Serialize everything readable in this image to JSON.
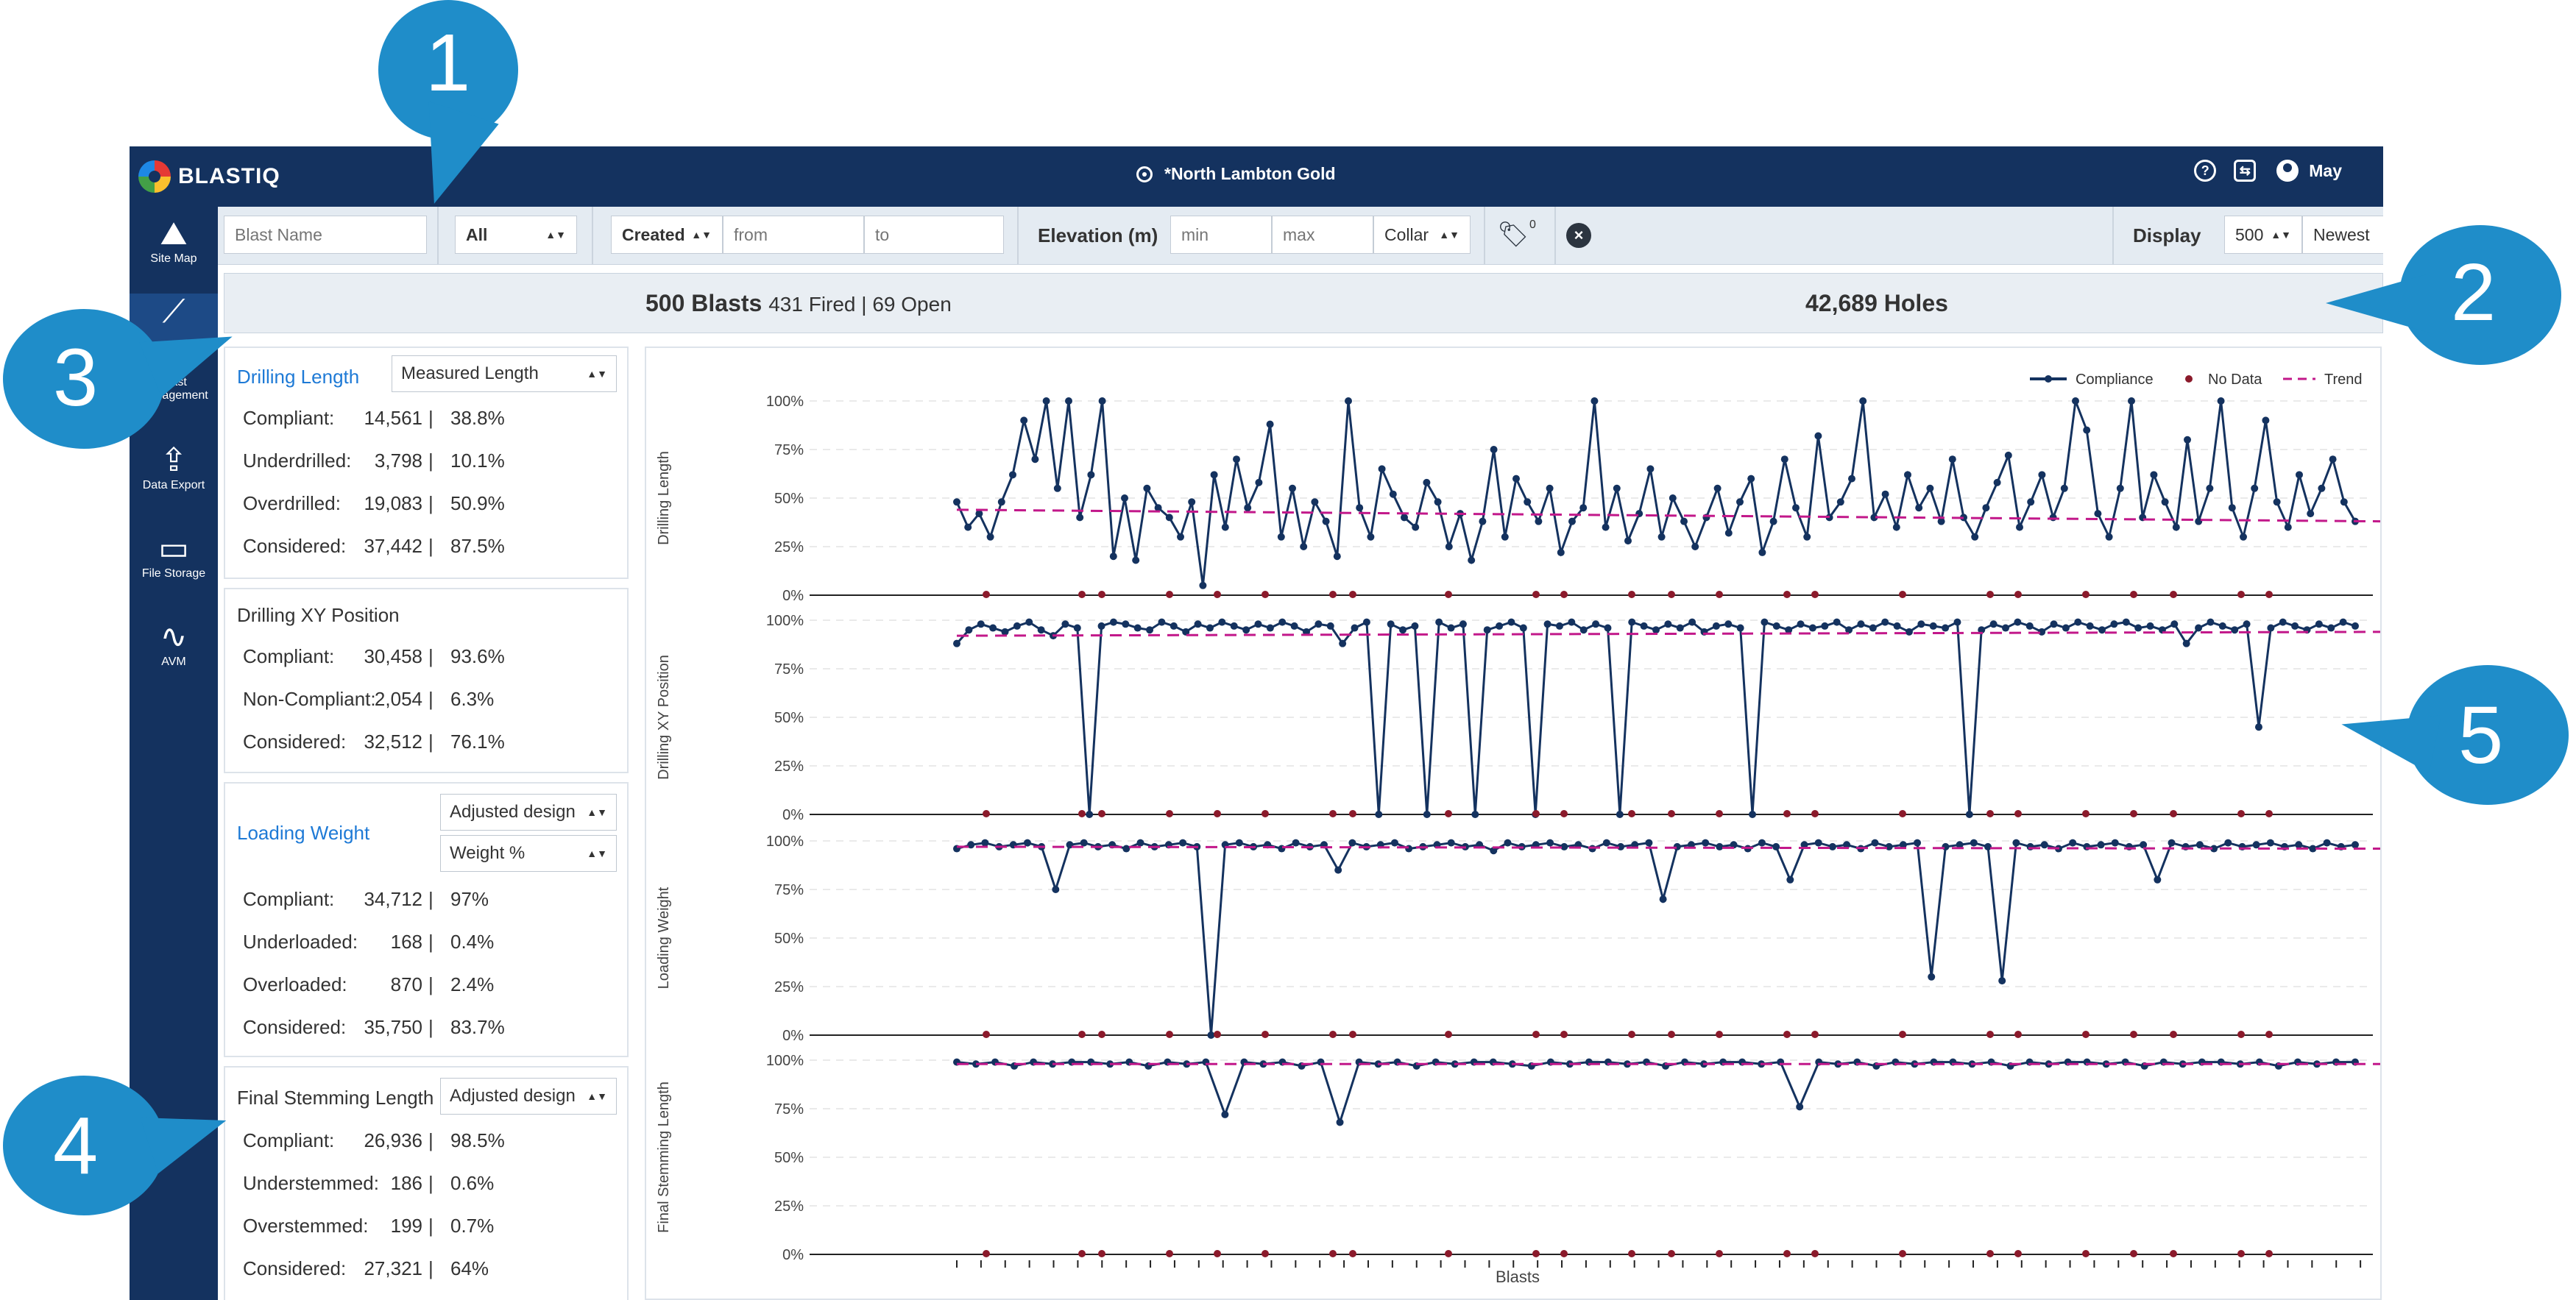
{
  "app": {
    "brand": "BLASTIQ",
    "site_name": "*North Lambton Gold",
    "help_icon": "help-circle-icon",
    "user_name": "May"
  },
  "sidebar": {
    "items": [
      {
        "label": "Site Map",
        "icon": "map-icon"
      },
      {
        "label": "",
        "icon": "analytics-chart-icon"
      },
      {
        "label": "Blast Management",
        "icon": "sliders-icon"
      },
      {
        "label": "Data Export",
        "icon": "upload-icon"
      },
      {
        "label": "File Storage",
        "icon": "folder-icon"
      },
      {
        "label": "AVM",
        "icon": "waveform-icon"
      }
    ]
  },
  "filters": {
    "blast_name_placeholder": "Blast Name",
    "status_value": "All",
    "date_field": "Created",
    "from_placeholder": "from",
    "to_placeholder": "to",
    "elevation_label": "Elevation (m)",
    "min_placeholder": "min",
    "max_placeholder": "max",
    "elevation_ref": "Collar",
    "tag_count": "0",
    "display_label": "Display",
    "display_count": "500",
    "sort_order": "Newest"
  },
  "summary": {
    "blasts_count": "500 Blasts",
    "blasts_detail": "431 Fired | 69 Open",
    "holes": "42,689 Holes"
  },
  "panels": [
    {
      "title": "Drilling Length",
      "dropdowns": [
        "Measured Length"
      ],
      "rows": [
        {
          "label": "Compliant:",
          "count": "14,561",
          "pct": "38.8%"
        },
        {
          "label": "Underdrilled:",
          "count": "3,798",
          "pct": "10.1%"
        },
        {
          "label": "Overdrilled:",
          "count": "19,083",
          "pct": "50.9%"
        },
        {
          "label": "Considered:",
          "count": "37,442",
          "pct": "87.5%"
        }
      ]
    },
    {
      "title": "Drilling XY Position",
      "dropdowns": [],
      "rows": [
        {
          "label": "Compliant:",
          "count": "30,458",
          "pct": "93.6%"
        },
        {
          "label": "Non-Compliant:",
          "count": "2,054",
          "pct": "6.3%"
        },
        {
          "label": "Considered:",
          "count": "32,512",
          "pct": "76.1%"
        }
      ]
    },
    {
      "title": "Loading Weight",
      "dropdowns": [
        "Adjusted design",
        "Weight %"
      ],
      "rows": [
        {
          "label": "Compliant:",
          "count": "34,712",
          "pct": "97%"
        },
        {
          "label": "Underloaded:",
          "count": "168",
          "pct": "0.4%"
        },
        {
          "label": "Overloaded:",
          "count": "870",
          "pct": "2.4%"
        },
        {
          "label": "Considered:",
          "count": "35,750",
          "pct": "83.7%"
        }
      ]
    },
    {
      "title": "Final Stemming Length",
      "dropdowns": [
        "Adjusted design"
      ],
      "rows": [
        {
          "label": "Compliant:",
          "count": "26,936",
          "pct": "98.5%"
        },
        {
          "label": "Understemmed:",
          "count": "186",
          "pct": "0.6%"
        },
        {
          "label": "Overstemmed:",
          "count": "199",
          "pct": "0.7%"
        },
        {
          "label": "Considered:",
          "count": "27,321",
          "pct": "64%"
        }
      ]
    }
  ],
  "callouts": [
    "1",
    "2",
    "3",
    "4",
    "5"
  ],
  "colors": {
    "navy": "#14325f",
    "compliance": "#14325f",
    "nodata": "#8b1a2b",
    "trend": "#c2188a",
    "callout": "#1f8dc9",
    "link": "#1e7ad6"
  },
  "chart_data": [
    {
      "type": "line",
      "ylabel": "Drilling Length",
      "xlabel": "",
      "yticks": [
        "0%",
        "25%",
        "50%",
        "75%",
        "100%"
      ],
      "ylim": [
        0,
        100
      ],
      "legend": [
        "Compliance",
        "No Data",
        "Trend"
      ],
      "legend_position": "top-right",
      "trend": [
        44,
        38
      ],
      "series": [
        {
          "values": [
            48,
            35,
            42,
            30,
            48,
            62,
            90,
            70,
            100,
            55,
            100,
            40,
            62,
            100,
            20,
            50,
            18,
            55,
            45,
            40,
            30,
            48,
            5,
            62,
            35,
            70,
            45,
            58,
            88,
            30,
            55,
            25,
            48,
            38,
            20,
            100,
            45,
            30,
            65,
            52,
            40,
            35,
            58,
            48,
            25,
            42,
            18,
            38,
            75,
            30,
            60,
            48,
            38,
            55,
            22,
            38,
            45,
            100,
            35,
            55,
            28,
            42,
            65,
            30,
            50,
            38,
            25,
            40,
            55,
            32,
            48,
            60,
            22,
            38,
            70,
            45,
            30,
            82,
            40,
            48,
            60,
            100,
            40,
            52,
            35,
            62,
            45,
            55,
            38,
            70,
            40,
            30,
            45,
            58,
            72,
            35,
            48,
            62,
            40,
            55,
            100,
            85,
            42,
            30,
            55,
            100,
            40,
            62,
            48,
            35,
            80,
            38,
            55,
            100,
            45,
            30,
            55,
            90,
            48,
            35,
            62,
            42,
            55,
            70,
            48,
            38
          ]
        }
      ]
    },
    {
      "type": "line",
      "ylabel": "Drilling XY Position",
      "xlabel": "",
      "yticks": [
        "0%",
        "25%",
        "50%",
        "75%",
        "100%"
      ],
      "ylim": [
        0,
        100
      ],
      "trend": [
        92,
        94
      ],
      "series": [
        {
          "values": [
            88,
            95,
            98,
            96,
            94,
            97,
            99,
            95,
            92,
            98,
            96,
            0,
            97,
            99,
            98,
            96,
            95,
            99,
            97,
            94,
            98,
            96,
            99,
            97,
            95,
            98,
            96,
            99,
            97,
            94,
            98,
            97,
            88,
            96,
            99,
            0,
            98,
            95,
            97,
            0,
            99,
            96,
            98,
            0,
            95,
            97,
            99,
            96,
            0,
            98,
            97,
            99,
            95,
            98,
            96,
            0,
            99,
            97,
            95,
            98,
            96,
            99,
            94,
            97,
            98,
            96,
            0,
            99,
            97,
            95,
            98,
            96,
            97,
            99,
            95,
            98,
            96,
            99,
            97,
            94,
            98,
            97,
            96,
            99,
            0,
            95,
            98,
            96,
            99,
            97,
            94,
            98,
            96,
            99,
            97,
            95,
            98,
            99,
            96,
            97,
            95,
            98,
            88,
            96,
            99,
            97,
            95,
            98,
            45,
            96,
            99,
            97,
            95,
            98,
            96,
            99,
            97
          ]
        }
      ]
    },
    {
      "type": "line",
      "ylabel": "Loading Weight",
      "xlabel": "",
      "yticks": [
        "0%",
        "25%",
        "50%",
        "75%",
        "100%"
      ],
      "ylim": [
        0,
        100
      ],
      "trend": [
        97,
        96
      ],
      "series": [
        {
          "values": [
            96,
            98,
            99,
            97,
            98,
            99,
            97,
            75,
            98,
            99,
            97,
            98,
            96,
            99,
            97,
            98,
            99,
            97,
            0,
            98,
            99,
            97,
            98,
            96,
            99,
            97,
            98,
            85,
            99,
            97,
            98,
            99,
            96,
            97,
            98,
            99,
            97,
            98,
            95,
            99,
            97,
            98,
            99,
            97,
            98,
            96,
            99,
            97,
            98,
            99,
            70,
            97,
            98,
            99,
            97,
            98,
            96,
            99,
            97,
            80,
            98,
            99,
            97,
            98,
            96,
            99,
            97,
            98,
            99,
            30,
            97,
            98,
            99,
            97,
            28,
            99,
            97,
            98,
            96,
            99,
            97,
            98,
            99,
            97,
            98,
            80,
            99,
            97,
            98,
            96,
            99,
            97,
            98,
            99,
            97,
            98,
            96,
            99,
            97,
            98
          ]
        }
      ]
    },
    {
      "type": "line",
      "ylabel": "Final Stemming Length",
      "xlabel": "Blasts",
      "yticks": [
        "0%",
        "25%",
        "50%",
        "75%",
        "100%"
      ],
      "ylim": [
        0,
        100
      ],
      "trend": [
        98,
        98
      ],
      "series": [
        {
          "values": [
            99,
            98,
            99,
            97,
            99,
            98,
            99,
            99,
            98,
            99,
            97,
            99,
            98,
            99,
            72,
            99,
            98,
            99,
            97,
            99,
            68,
            99,
            98,
            99,
            97,
            99,
            98,
            99,
            99,
            98,
            97,
            99,
            98,
            99,
            99,
            98,
            99,
            97,
            99,
            98,
            99,
            99,
            98,
            99,
            76,
            99,
            98,
            99,
            97,
            99,
            98,
            99,
            99,
            98,
            99,
            97,
            99,
            98,
            99,
            99,
            98,
            99,
            97,
            99,
            98,
            99,
            99,
            98,
            99,
            97,
            99,
            98,
            99,
            99
          ]
        }
      ]
    }
  ]
}
